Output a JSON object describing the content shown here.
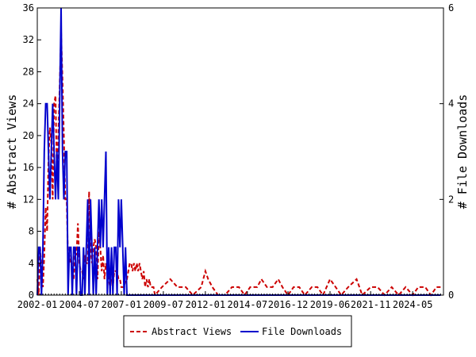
{
  "chart_data": {
    "type": "line",
    "title": "",
    "xlabel": "",
    "ylabel_left": "# Abstract Views",
    "ylabel_right": "# File Downloads",
    "ylim_left": [
      0,
      36
    ],
    "ylim_right": [
      0,
      6
    ],
    "yticks_left": [
      0,
      4,
      8,
      12,
      16,
      20,
      24,
      28,
      32,
      36
    ],
    "yticks_right": [
      0,
      2,
      4,
      6
    ],
    "x_range": [
      "2002-01",
      "2026-03"
    ],
    "xticks": [
      "2002-01",
      "2004-07",
      "2007-01",
      "2009-07",
      "2012-01",
      "2014-07",
      "2016-12",
      "2019-06",
      "2021-11",
      "2024-05"
    ],
    "grid": false,
    "legend_position": "bottom-center",
    "series": [
      {
        "name": "Abstract Views",
        "axis": "left",
        "color": "#cc0000",
        "style": "dashed",
        "points": [
          [
            "2002-01",
            2
          ],
          [
            "2002-02",
            0
          ],
          [
            "2002-03",
            6
          ],
          [
            "2002-04",
            3
          ],
          [
            "2002-05",
            1
          ],
          [
            "2002-06",
            5
          ],
          [
            "2002-07",
            11
          ],
          [
            "2002-08",
            8
          ],
          [
            "2002-09",
            17
          ],
          [
            "2002-10",
            21
          ],
          [
            "2002-11",
            19
          ],
          [
            "2002-12",
            12
          ],
          [
            "2003-01",
            24
          ],
          [
            "2003-02",
            25
          ],
          [
            "2003-03",
            15
          ],
          [
            "2003-04",
            20
          ],
          [
            "2003-05",
            26
          ],
          [
            "2003-06",
            33
          ],
          [
            "2003-07",
            27
          ],
          [
            "2003-08",
            20
          ],
          [
            "2003-09",
            12
          ],
          [
            "2003-10",
            12
          ],
          [
            "2003-11",
            4
          ],
          [
            "2003-12",
            4
          ],
          [
            "2004-01",
            5
          ],
          [
            "2004-02",
            3
          ],
          [
            "2004-03",
            2
          ],
          [
            "2004-04",
            6
          ],
          [
            "2004-05",
            5
          ],
          [
            "2004-06",
            9
          ],
          [
            "2004-07",
            4
          ],
          [
            "2004-08",
            3
          ],
          [
            "2004-09",
            3
          ],
          [
            "2004-10",
            2
          ],
          [
            "2004-11",
            5
          ],
          [
            "2004-12",
            4
          ],
          [
            "2005-01",
            4
          ],
          [
            "2005-02",
            13
          ],
          [
            "2005-03",
            6
          ],
          [
            "2005-04",
            4
          ],
          [
            "2005-05",
            6
          ],
          [
            "2005-06",
            7
          ],
          [
            "2005-07",
            6
          ],
          [
            "2005-08",
            2
          ],
          [
            "2005-09",
            8
          ],
          [
            "2005-10",
            6
          ],
          [
            "2005-11",
            3
          ],
          [
            "2005-12",
            5
          ],
          [
            "2006-01",
            2
          ],
          [
            "2006-02",
            4
          ],
          [
            "2006-03",
            3
          ],
          [
            "2006-04",
            2
          ],
          [
            "2006-05",
            1
          ],
          [
            "2006-06",
            2
          ],
          [
            "2006-07",
            1
          ],
          [
            "2006-08",
            3
          ],
          [
            "2006-09",
            3
          ],
          [
            "2006-10",
            3
          ],
          [
            "2006-11",
            2
          ],
          [
            "2006-12",
            2
          ],
          [
            "2007-01",
            1
          ],
          [
            "2007-02",
            1
          ],
          [
            "2007-03",
            1
          ],
          [
            "2007-04",
            2
          ],
          [
            "2007-05",
            2
          ],
          [
            "2007-06",
            3
          ],
          [
            "2007-07",
            4
          ],
          [
            "2007-08",
            4
          ],
          [
            "2007-09",
            3
          ],
          [
            "2007-10",
            4
          ],
          [
            "2007-11",
            3
          ],
          [
            "2007-12",
            4
          ],
          [
            "2008-01",
            3
          ],
          [
            "2008-02",
            4
          ],
          [
            "2008-03",
            3
          ],
          [
            "2008-04",
            2
          ],
          [
            "2008-05",
            3
          ],
          [
            "2008-06",
            1
          ],
          [
            "2008-07",
            2
          ],
          [
            "2008-08",
            1
          ],
          [
            "2008-09",
            2
          ],
          [
            "2008-10",
            1
          ],
          [
            "2008-11",
            1
          ],
          [
            "2008-12",
            1
          ],
          [
            "2009-01",
            0
          ],
          [
            "2009-06",
            1
          ],
          [
            "2009-12",
            2
          ],
          [
            "2010-05",
            1
          ],
          [
            "2010-11",
            1
          ],
          [
            "2011-04",
            0
          ],
          [
            "2011-10",
            1
          ],
          [
            "2012-01",
            3
          ],
          [
            "2012-03",
            2
          ],
          [
            "2012-06",
            1
          ],
          [
            "2012-10",
            0
          ],
          [
            "2013-03",
            0
          ],
          [
            "2013-08",
            1
          ],
          [
            "2014-01",
            1
          ],
          [
            "2014-05",
            0
          ],
          [
            "2014-09",
            1
          ],
          [
            "2015-02",
            1
          ],
          [
            "2015-05",
            2
          ],
          [
            "2015-09",
            1
          ],
          [
            "2016-01",
            1
          ],
          [
            "2016-05",
            2
          ],
          [
            "2016-08",
            1
          ],
          [
            "2016-12",
            0
          ],
          [
            "2017-04",
            1
          ],
          [
            "2017-08",
            1
          ],
          [
            "2017-12",
            0
          ],
          [
            "2018-05",
            1
          ],
          [
            "2018-09",
            1
          ],
          [
            "2019-01",
            0
          ],
          [
            "2019-06",
            2
          ],
          [
            "2019-10",
            1
          ],
          [
            "2020-02",
            0
          ],
          [
            "2020-07",
            1
          ],
          [
            "2021-01",
            2
          ],
          [
            "2021-05",
            0
          ],
          [
            "2021-11",
            1
          ],
          [
            "2022-04",
            1
          ],
          [
            "2022-09",
            0
          ],
          [
            "2023-02",
            1
          ],
          [
            "2023-07",
            0
          ],
          [
            "2023-12",
            1
          ],
          [
            "2024-05",
            0
          ],
          [
            "2024-09",
            1
          ],
          [
            "2025-02",
            1
          ],
          [
            "2025-06",
            0
          ],
          [
            "2025-10",
            1
          ],
          [
            "2026-01",
            1
          ]
        ]
      },
      {
        "name": "File Downloads",
        "axis": "right",
        "color": "#0000cc",
        "style": "solid",
        "points": [
          [
            "2002-01",
            0
          ],
          [
            "2002-02",
            1
          ],
          [
            "2002-03",
            1
          ],
          [
            "2002-04",
            0
          ],
          [
            "2002-05",
            1
          ],
          [
            "2002-06",
            3
          ],
          [
            "2002-07",
            4
          ],
          [
            "2002-08",
            4
          ],
          [
            "2002-09",
            3
          ],
          [
            "2002-10",
            2
          ],
          [
            "2002-11",
            3
          ],
          [
            "2002-12",
            4
          ],
          [
            "2003-01",
            3
          ],
          [
            "2003-02",
            2
          ],
          [
            "2003-03",
            3
          ],
          [
            "2003-04",
            2
          ],
          [
            "2003-05",
            4
          ],
          [
            "2003-06",
            6
          ],
          [
            "2003-07",
            3
          ],
          [
            "2003-08",
            2
          ],
          [
            "2003-09",
            3
          ],
          [
            "2003-10",
            3
          ],
          [
            "2003-11",
            0
          ],
          [
            "2003-12",
            1
          ],
          [
            "2004-01",
            1
          ],
          [
            "2004-02",
            0
          ],
          [
            "2004-03",
            1
          ],
          [
            "2004-04",
            1
          ],
          [
            "2004-05",
            0
          ],
          [
            "2004-06",
            1
          ],
          [
            "2004-07",
            1
          ],
          [
            "2004-08",
            0
          ],
          [
            "2004-09",
            0
          ],
          [
            "2004-10",
            1
          ],
          [
            "2004-11",
            0
          ],
          [
            "2004-12",
            1
          ],
          [
            "2005-01",
            2
          ],
          [
            "2005-02",
            0
          ],
          [
            "2005-03",
            2
          ],
          [
            "2005-04",
            1
          ],
          [
            "2005-05",
            0
          ],
          [
            "2005-06",
            1
          ],
          [
            "2005-07",
            0
          ],
          [
            "2005-08",
            1
          ],
          [
            "2005-09",
            2
          ],
          [
            "2005-10",
            1
          ],
          [
            "2005-11",
            2
          ],
          [
            "2005-12",
            1
          ],
          [
            "2006-01",
            2
          ],
          [
            "2006-02",
            3
          ],
          [
            "2006-03",
            0
          ],
          [
            "2006-04",
            1
          ],
          [
            "2006-05",
            0
          ],
          [
            "2006-06",
            1
          ],
          [
            "2006-07",
            0
          ],
          [
            "2006-08",
            1
          ],
          [
            "2006-09",
            1
          ],
          [
            "2006-10",
            0
          ],
          [
            "2006-11",
            2
          ],
          [
            "2006-12",
            1
          ],
          [
            "2007-01",
            2
          ],
          [
            "2007-02",
            1
          ],
          [
            "2007-03",
            0
          ],
          [
            "2007-04",
            1
          ],
          [
            "2007-05",
            0
          ],
          [
            "2007-06",
            0
          ],
          [
            "2007-07",
            0
          ],
          [
            "2007-08",
            0
          ],
          [
            "2007-09",
            0
          ],
          [
            "2007-10",
            0
          ],
          [
            "2007-11",
            0
          ],
          [
            "2007-12",
            0
          ],
          [
            "2008-01",
            0
          ],
          [
            "2008-06",
            0
          ],
          [
            "2009-01",
            0
          ],
          [
            "2012-01",
            0
          ],
          [
            "2016-01",
            0
          ],
          [
            "2020-01",
            0
          ],
          [
            "2024-01",
            0
          ],
          [
            "2026-01",
            0
          ]
        ]
      }
    ]
  },
  "legend": {
    "items": [
      {
        "label": "Abstract Views",
        "color": "#cc0000",
        "style": "dashed"
      },
      {
        "label": "File Downloads",
        "color": "#0000cc",
        "style": "solid"
      }
    ]
  }
}
